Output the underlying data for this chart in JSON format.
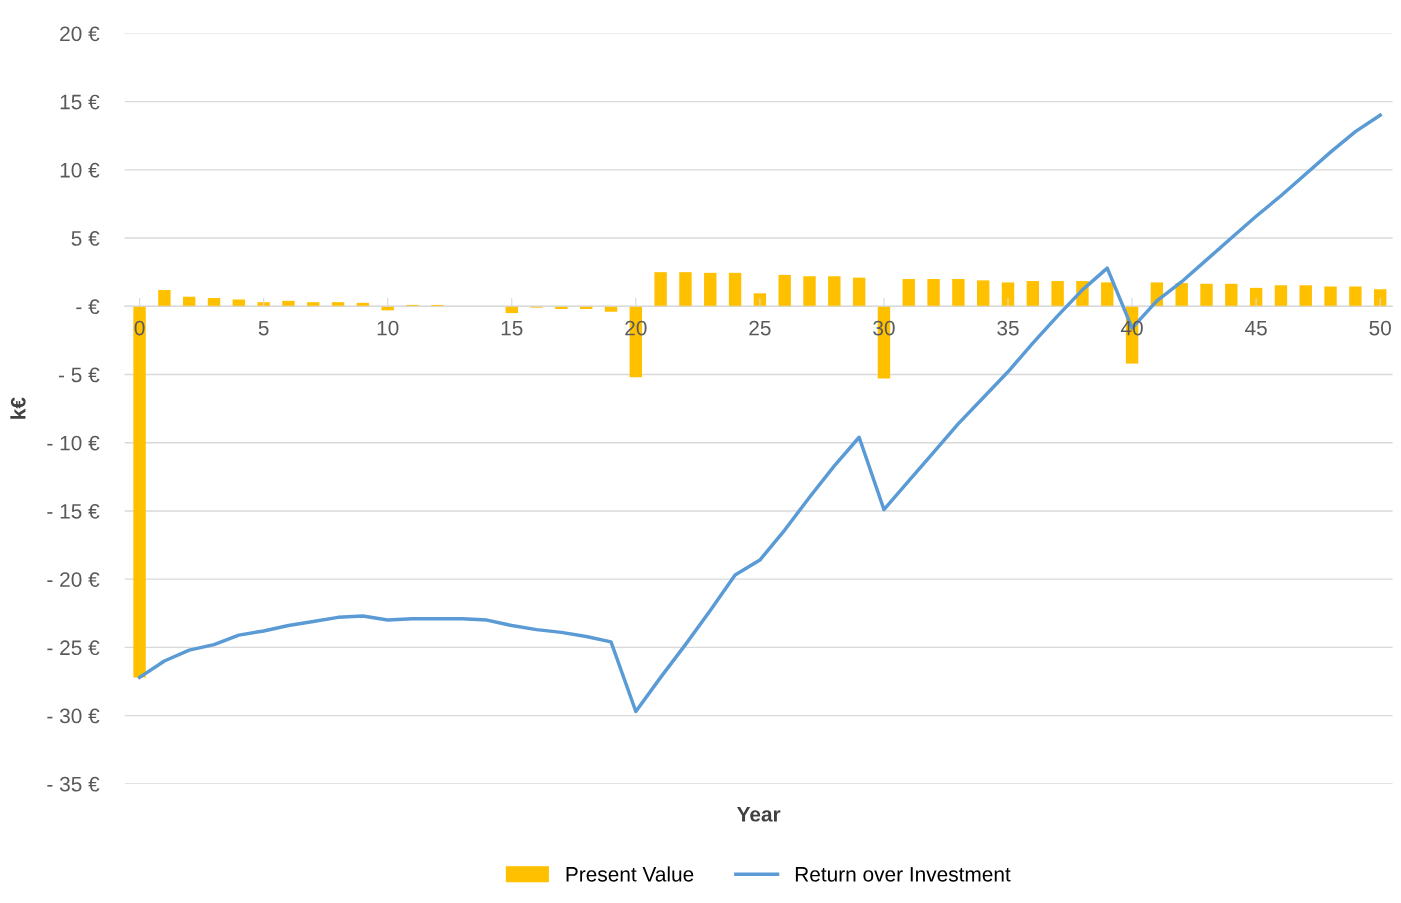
{
  "chart_data": {
    "type": "bar",
    "xlabel": "Year",
    "ylabel": "k€",
    "categories": [
      "0",
      null,
      null,
      null,
      null,
      "5",
      null,
      null,
      null,
      null,
      "10",
      null,
      null,
      null,
      null,
      "15",
      null,
      null,
      null,
      null,
      "20",
      null,
      null,
      null,
      null,
      "25",
      null,
      null,
      null,
      null,
      "30",
      null,
      null,
      null,
      null,
      "35",
      null,
      null,
      null,
      null,
      "40",
      null,
      null,
      null,
      null,
      "45",
      null,
      null,
      null,
      null,
      "50"
    ],
    "series": [
      {
        "name": "Present Value",
        "color": "#ffc000",
        "values": [
          -27.2,
          1.2,
          0.7,
          0.6,
          0.5,
          0.3,
          0.4,
          0.3,
          0.3,
          0.25,
          -0.3,
          0.1,
          0.1,
          0,
          0,
          -0.5,
          -0.1,
          -0.2,
          -0.2,
          -0.4,
          -5.2,
          2.5,
          2.5,
          2.45,
          2.45,
          0.95,
          2.3,
          2.2,
          2.2,
          2.1,
          -5.3,
          2.0,
          2.0,
          2.0,
          1.9,
          1.75,
          1.85,
          1.85,
          1.85,
          1.75,
          -4.2,
          1.75,
          1.7,
          1.65,
          1.65,
          1.35,
          1.55,
          1.55,
          1.45,
          1.45,
          1.25
        ]
      },
      {
        "name": "Return over Investment",
        "type": "line",
        "color": "#5b9bd5",
        "values": [
          -27.2,
          -26.0,
          -25.2,
          -24.8,
          -24.1,
          -23.8,
          -23.4,
          -23.1,
          -22.8,
          -22.7,
          -23.0,
          -22.9,
          -22.9,
          -22.9,
          -23.0,
          -23.4,
          -23.7,
          -23.9,
          -24.2,
          -24.6,
          -29.7,
          -27.2,
          -24.8,
          -22.3,
          -19.7,
          -18.6,
          -16.4,
          -14.0,
          -11.7,
          -9.6,
          -14.9,
          -12.8,
          -10.7,
          -8.6,
          -6.7,
          -4.8,
          -2.7,
          -0.7,
          1.2,
          2.8,
          -1.6,
          0.4,
          1.8,
          3.4,
          5.0,
          6.6,
          8.1,
          9.7,
          11.3,
          12.8,
          14.0
        ]
      }
    ],
    "ylim": [
      -35,
      20
    ],
    "yticks": [
      {
        "value": -35,
        "label": "- 35 €"
      },
      {
        "value": -30,
        "label": "- 30 €"
      },
      {
        "value": -25,
        "label": "- 25 €"
      },
      {
        "value": -20,
        "label": "- 20 €"
      },
      {
        "value": -15,
        "label": "- 15 €"
      },
      {
        "value": -10,
        "label": "- 10 €"
      },
      {
        "value": -5,
        "label": "- 5 €"
      },
      {
        "value": 0,
        "label": "- €"
      },
      {
        "value": 5,
        "label": "5 €"
      },
      {
        "value": 10,
        "label": "10 €"
      },
      {
        "value": 15,
        "label": "15 €"
      },
      {
        "value": 20,
        "label": "20 €"
      }
    ],
    "grid": "y",
    "legend": "bottom",
    "marker": "none",
    "line_style": "solid"
  }
}
